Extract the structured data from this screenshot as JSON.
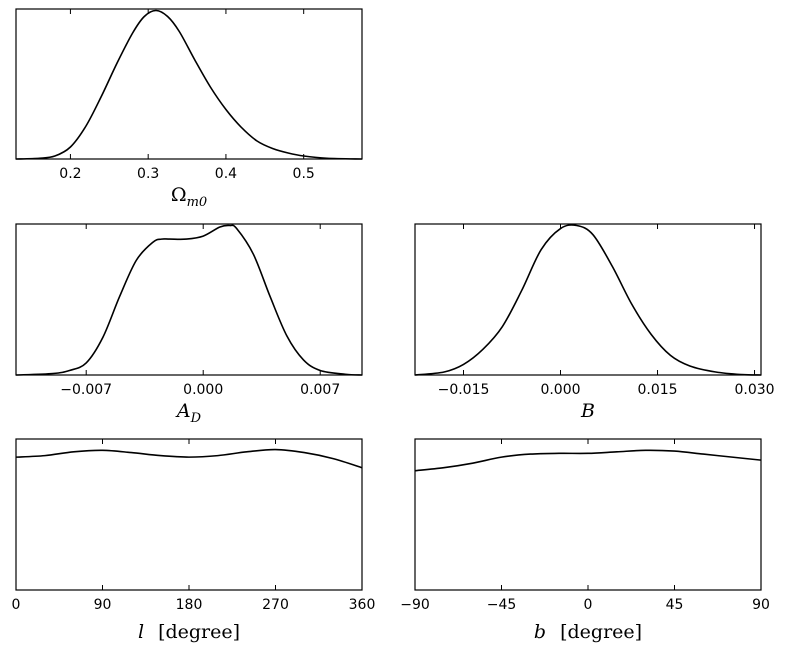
{
  "chart_data": [
    {
      "id": "omega",
      "type": "line",
      "xlabel": "Ω_m0",
      "ylabel": "",
      "xlim": [
        0.13,
        0.575
      ],
      "ylim": [
        0,
        1.0
      ],
      "xticks": [
        0.2,
        0.3,
        0.4,
        0.5
      ],
      "xtick_labels": [
        "0.2",
        "0.3",
        "0.4",
        "0.5"
      ],
      "series": [
        {
          "x": [
            0.13,
            0.16,
            0.18,
            0.2,
            0.22,
            0.24,
            0.26,
            0.28,
            0.295,
            0.31,
            0.325,
            0.34,
            0.36,
            0.38,
            0.4,
            0.42,
            0.44,
            0.46,
            0.48,
            0.5,
            0.53,
            0.575
          ],
          "y": [
            0.0,
            0.005,
            0.02,
            0.08,
            0.22,
            0.42,
            0.64,
            0.84,
            0.95,
            0.99,
            0.95,
            0.85,
            0.66,
            0.48,
            0.33,
            0.21,
            0.12,
            0.07,
            0.04,
            0.02,
            0.005,
            0.0
          ]
        }
      ]
    },
    {
      "id": "ad",
      "type": "line",
      "xlabel": "A_D",
      "ylabel": "",
      "xlim": [
        -0.0112,
        0.0095
      ],
      "ylim": [
        0,
        1.0
      ],
      "xticks": [
        -0.007,
        0.0,
        0.007
      ],
      "xtick_labels": [
        "−0.007",
        "0.000",
        "0.007"
      ],
      "series": [
        {
          "x": [
            -0.0112,
            -0.009,
            -0.008,
            -0.007,
            -0.006,
            -0.005,
            -0.004,
            -0.003,
            -0.0025,
            -0.002,
            -0.001,
            0.0,
            0.001,
            0.0016,
            0.002,
            0.003,
            0.004,
            0.005,
            0.006,
            0.007,
            0.0085,
            0.0095
          ],
          "y": [
            0.0,
            0.01,
            0.03,
            0.08,
            0.25,
            0.52,
            0.76,
            0.88,
            0.9,
            0.9,
            0.9,
            0.92,
            0.98,
            0.99,
            0.97,
            0.8,
            0.52,
            0.26,
            0.1,
            0.03,
            0.005,
            0.0
          ]
        }
      ]
    },
    {
      "id": "b-param",
      "type": "line",
      "xlabel": "B",
      "ylabel": "",
      "xlim": [
        -0.0225,
        0.031
      ],
      "ylim": [
        0,
        1.0
      ],
      "xticks": [
        -0.015,
        0.0,
        0.015,
        0.03
      ],
      "xtick_labels": [
        "−0.015",
        "0.000",
        "0.015",
        "0.030"
      ],
      "series": [
        {
          "x": [
            -0.0225,
            -0.018,
            -0.015,
            -0.012,
            -0.009,
            -0.006,
            -0.003,
            0.0,
            0.0025,
            0.005,
            0.008,
            0.011,
            0.014,
            0.017,
            0.02,
            0.024,
            0.028,
            0.031
          ],
          "y": [
            0.0,
            0.02,
            0.07,
            0.17,
            0.32,
            0.56,
            0.83,
            0.97,
            0.99,
            0.93,
            0.72,
            0.47,
            0.27,
            0.13,
            0.06,
            0.02,
            0.003,
            0.0
          ]
        }
      ]
    },
    {
      "id": "l-degree",
      "type": "line",
      "xlabel": "l [degree]",
      "ylabel": "",
      "xlim": [
        0,
        360
      ],
      "ylim": [
        0,
        1.0
      ],
      "xticks": [
        0,
        90,
        180,
        270,
        360
      ],
      "xtick_labels": [
        "0",
        "90",
        "180",
        "270",
        "360"
      ],
      "series": [
        {
          "x": [
            0,
            30,
            60,
            90,
            120,
            150,
            180,
            210,
            240,
            270,
            300,
            330,
            360
          ],
          "y": [
            0.88,
            0.89,
            0.915,
            0.925,
            0.91,
            0.89,
            0.88,
            0.89,
            0.915,
            0.93,
            0.91,
            0.87,
            0.81
          ]
        }
      ]
    },
    {
      "id": "b-degree",
      "type": "line",
      "xlabel": "b [degree]",
      "ylabel": "",
      "xlim": [
        -90,
        90
      ],
      "ylim": [
        0,
        1.0
      ],
      "xticks": [
        -90,
        -45,
        0,
        45,
        90
      ],
      "xtick_labels": [
        "−90",
        "−45",
        "0",
        "45",
        "90"
      ],
      "series": [
        {
          "x": [
            -90,
            -75,
            -60,
            -45,
            -30,
            -15,
            0,
            15,
            30,
            45,
            60,
            75,
            90
          ],
          "y": [
            0.79,
            0.81,
            0.84,
            0.88,
            0.9,
            0.905,
            0.905,
            0.915,
            0.925,
            0.92,
            0.9,
            0.88,
            0.86
          ]
        }
      ]
    }
  ]
}
